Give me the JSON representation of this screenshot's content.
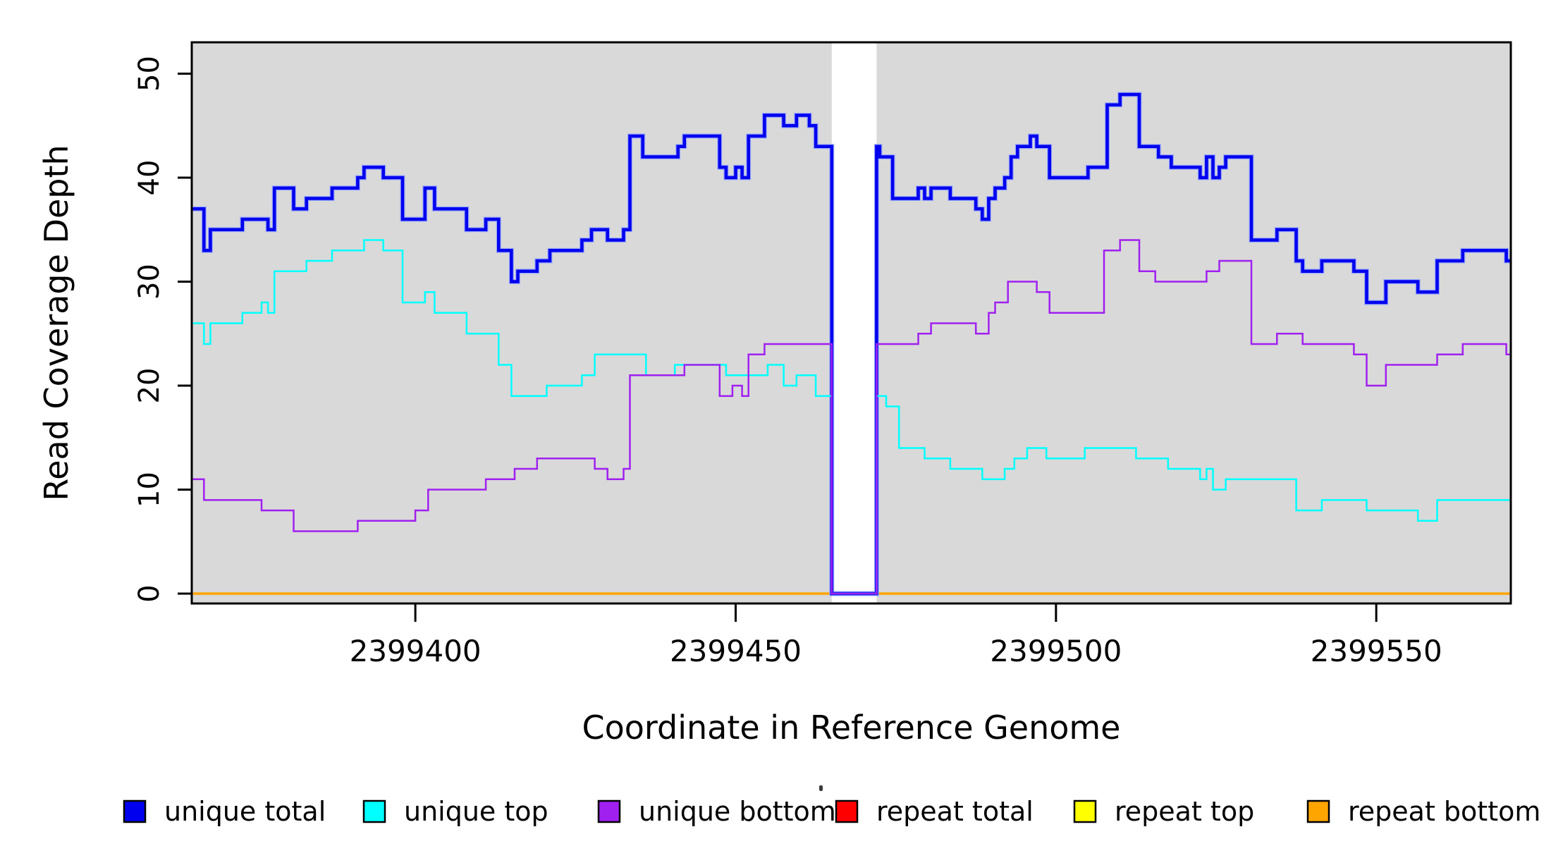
{
  "figure": {
    "background_color": "#ffffff",
    "plot_background_color": "#D9D9D9",
    "box_color": "#000000",
    "gap_band_color": "#ffffff"
  },
  "chart_data": {
    "type": "line",
    "step": true,
    "title": "",
    "xlabel": "Coordinate in Reference Genome",
    "ylabel": "Read Coverage Depth",
    "xlim": [
      2399365.1,
      2399571
    ],
    "ylim": [
      0,
      53
    ],
    "x_ticks": [
      2399400,
      2399450,
      2399500,
      2399550
    ],
    "y_ticks": [
      0,
      10,
      20,
      30,
      40,
      50
    ],
    "grid": "off",
    "legend_position": "bottom",
    "gap_region": {
      "x_start": 2399465,
      "x_end": 2399472
    },
    "series": [
      {
        "name": "repeat total",
        "color": "#FF0000",
        "width": 3,
        "steps": [
          [
            2399365.1,
            0
          ],
          [
            2399571,
            0
          ]
        ]
      },
      {
        "name": "repeat top",
        "color": "#FFFF00",
        "width": 3,
        "steps": [
          [
            2399365.1,
            0
          ],
          [
            2399571,
            0
          ]
        ]
      },
      {
        "name": "repeat bottom",
        "color": "#FFA500",
        "width": 3.5,
        "steps": [
          [
            2399365.1,
            0
          ],
          [
            2399571,
            0
          ]
        ]
      },
      {
        "name": "unique total",
        "color": "#0000EE",
        "width": 4.5,
        "halo": "#99A8F8",
        "steps": [
          [
            2399365.1,
            37
          ],
          [
            2399367,
            33
          ],
          [
            2399368,
            35
          ],
          [
            2399373,
            36
          ],
          [
            2399377,
            35
          ],
          [
            2399378,
            39
          ],
          [
            2399381,
            37
          ],
          [
            2399383,
            38
          ],
          [
            2399387,
            39
          ],
          [
            2399391,
            40
          ],
          [
            2399392,
            41
          ],
          [
            2399395,
            40
          ],
          [
            2399398,
            36
          ],
          [
            2399401.5,
            39
          ],
          [
            2399403,
            37
          ],
          [
            2399408,
            35
          ],
          [
            2399411,
            36
          ],
          [
            2399413,
            33
          ],
          [
            2399415,
            30
          ],
          [
            2399416,
            31
          ],
          [
            2399419,
            32
          ],
          [
            2399421,
            33
          ],
          [
            2399426,
            34
          ],
          [
            2399427.5,
            35
          ],
          [
            2399430,
            34
          ],
          [
            2399432.5,
            35
          ],
          [
            2399433.5,
            44
          ],
          [
            2399435.5,
            42
          ],
          [
            2399441,
            43
          ],
          [
            2399442,
            44
          ],
          [
            2399447.5,
            41
          ],
          [
            2399448.5,
            40
          ],
          [
            2399450,
            41
          ],
          [
            2399451,
            40
          ],
          [
            2399452,
            44
          ],
          [
            2399454.5,
            46
          ],
          [
            2399457.5,
            45
          ],
          [
            2399459.5,
            46
          ],
          [
            2399461.5,
            45
          ],
          [
            2399462.5,
            43
          ],
          [
            2399465,
            0
          ],
          [
            2399472,
            43
          ],
          [
            2399472.5,
            42
          ],
          [
            2399474.5,
            38
          ],
          [
            2399478.5,
            39
          ],
          [
            2399479.5,
            38
          ],
          [
            2399480.5,
            39
          ],
          [
            2399483.5,
            38
          ],
          [
            2399487.5,
            37
          ],
          [
            2399488.5,
            36
          ],
          [
            2399489.5,
            38
          ],
          [
            2399490.5,
            39
          ],
          [
            2399492,
            40
          ],
          [
            2399493,
            42
          ],
          [
            2399494,
            43
          ],
          [
            2399496,
            44
          ],
          [
            2399497,
            43
          ],
          [
            2399499,
            40
          ],
          [
            2399505,
            41
          ],
          [
            2399508,
            47
          ],
          [
            2399510,
            48
          ],
          [
            2399513,
            43
          ],
          [
            2399516,
            42
          ],
          [
            2399518,
            41
          ],
          [
            2399522.5,
            40
          ],
          [
            2399523.5,
            42
          ],
          [
            2399524.5,
            40
          ],
          [
            2399525.5,
            41
          ],
          [
            2399526.5,
            42
          ],
          [
            2399530.5,
            34
          ],
          [
            2399534.5,
            35
          ],
          [
            2399537.5,
            32
          ],
          [
            2399538.5,
            31
          ],
          [
            2399541.5,
            32
          ],
          [
            2399546.5,
            31
          ],
          [
            2399548.5,
            28
          ],
          [
            2399551.5,
            30
          ],
          [
            2399556.5,
            29
          ],
          [
            2399559.5,
            32
          ],
          [
            2399563.5,
            33
          ],
          [
            2399570.3,
            32
          ],
          [
            2399571,
            32
          ]
        ]
      },
      {
        "name": "unique top",
        "color": "#00FFFF",
        "width": 2.5,
        "steps": [
          [
            2399365.1,
            26
          ],
          [
            2399367,
            24
          ],
          [
            2399368,
            26
          ],
          [
            2399373,
            27
          ],
          [
            2399376,
            28
          ],
          [
            2399377,
            27
          ],
          [
            2399378,
            31
          ],
          [
            2399383,
            32
          ],
          [
            2399387,
            33
          ],
          [
            2399392,
            34
          ],
          [
            2399395,
            33
          ],
          [
            2399398,
            28
          ],
          [
            2399401.5,
            29
          ],
          [
            2399403,
            27
          ],
          [
            2399408,
            25
          ],
          [
            2399413,
            22
          ],
          [
            2399415,
            19
          ],
          [
            2399420.5,
            20
          ],
          [
            2399426,
            21
          ],
          [
            2399428,
            23
          ],
          [
            2399436,
            21
          ],
          [
            2399440.5,
            22
          ],
          [
            2399448.5,
            21
          ],
          [
            2399455,
            22
          ],
          [
            2399457.5,
            20
          ],
          [
            2399459.5,
            21
          ],
          [
            2399462.5,
            19
          ],
          [
            2399465,
            0
          ],
          [
            2399472,
            19
          ],
          [
            2399473.5,
            18
          ],
          [
            2399475.5,
            14
          ],
          [
            2399479.5,
            13
          ],
          [
            2399483.5,
            12
          ],
          [
            2399488.5,
            11
          ],
          [
            2399492,
            12
          ],
          [
            2399493.5,
            13
          ],
          [
            2399495.5,
            14
          ],
          [
            2399498.5,
            13
          ],
          [
            2399504.5,
            14
          ],
          [
            2399512.5,
            13
          ],
          [
            2399517.5,
            12
          ],
          [
            2399522.5,
            11
          ],
          [
            2399523.5,
            12
          ],
          [
            2399524.5,
            10
          ],
          [
            2399526.5,
            11
          ],
          [
            2399537.5,
            8
          ],
          [
            2399541.5,
            9
          ],
          [
            2399548.5,
            8
          ],
          [
            2399556.5,
            7
          ],
          [
            2399559.5,
            9
          ],
          [
            2399571,
            9
          ]
        ]
      },
      {
        "name": "unique bottom",
        "color": "#A020F0",
        "width": 2.5,
        "steps": [
          [
            2399365.1,
            11
          ],
          [
            2399367,
            9
          ],
          [
            2399376,
            8
          ],
          [
            2399381,
            6
          ],
          [
            2399391,
            7
          ],
          [
            2399400,
            8
          ],
          [
            2399402,
            10
          ],
          [
            2399411,
            11
          ],
          [
            2399415.5,
            12
          ],
          [
            2399419,
            13
          ],
          [
            2399428,
            12
          ],
          [
            2399430,
            11
          ],
          [
            2399432.5,
            12
          ],
          [
            2399433.5,
            21
          ],
          [
            2399442,
            22
          ],
          [
            2399447.5,
            19
          ],
          [
            2399449.5,
            20
          ],
          [
            2399451,
            19
          ],
          [
            2399452,
            23
          ],
          [
            2399454.5,
            24
          ],
          [
            2399465,
            0
          ],
          [
            2399472,
            24
          ],
          [
            2399478.5,
            25
          ],
          [
            2399480.5,
            26
          ],
          [
            2399487.5,
            25
          ],
          [
            2399489.5,
            27
          ],
          [
            2399490.5,
            28
          ],
          [
            2399492.5,
            30
          ],
          [
            2399497,
            29
          ],
          [
            2399499,
            27
          ],
          [
            2399507.5,
            33
          ],
          [
            2399510,
            34
          ],
          [
            2399513,
            31
          ],
          [
            2399515.5,
            30
          ],
          [
            2399523.5,
            31
          ],
          [
            2399525.5,
            32
          ],
          [
            2399530.5,
            24
          ],
          [
            2399534.5,
            25
          ],
          [
            2399538.5,
            24
          ],
          [
            2399546.5,
            23
          ],
          [
            2399548.5,
            20
          ],
          [
            2399551.5,
            22
          ],
          [
            2399559.5,
            23
          ],
          [
            2399563.5,
            24
          ],
          [
            2399570.3,
            23
          ],
          [
            2399571,
            23
          ]
        ]
      }
    ]
  },
  "legend": {
    "items": [
      {
        "label": "unique total",
        "color": "#0000EE"
      },
      {
        "label": "unique top",
        "color": "#00FFFF"
      },
      {
        "label": "unique bottom",
        "color": "#A020F0"
      },
      {
        "label": "repeat total",
        "color": "#FF0000"
      },
      {
        "label": "repeat top",
        "color": "#FFFF00"
      },
      {
        "label": "repeat bottom",
        "color": "#FFA500"
      }
    ]
  }
}
